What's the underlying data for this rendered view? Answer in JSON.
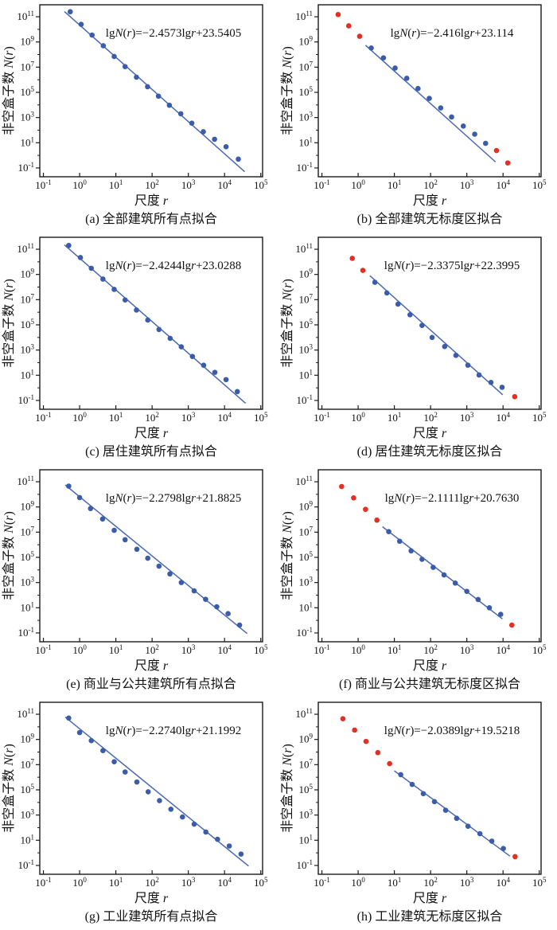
{
  "figure": {
    "description": "Eight log-log box-counting fractal fit plots, 4 rows x 2 columns",
    "background": "#ffffff"
  },
  "colors": {
    "blue_point": "#3b5ca9",
    "red_point": "#e23022",
    "fit_line": "#4a68b4",
    "axis": "#1a1a1a",
    "text": "#111111"
  },
  "axes_config": {
    "x_label": "尺度 r",
    "y_label": "非空盒子数 N(r)",
    "x_tick_exponents": [
      -1,
      0,
      1,
      2,
      3,
      4,
      5
    ],
    "y_tick_exponents_major": [
      -1,
      1,
      3,
      5,
      7,
      9,
      11
    ],
    "y_tick_exponents_minor": [
      0,
      2,
      4,
      6,
      8,
      10
    ],
    "xscale": "log",
    "yscale": "log",
    "xlim": [
      0.1,
      100000
    ],
    "ylim": [
      0.1,
      1000000000000
    ]
  },
  "chart_data": [
    {
      "id": "a",
      "type": "scatter",
      "caption": "(a) 全部建筑所有点拟合",
      "equation": "lgN(r)=−2.4573lgr+23.5405",
      "xlabel": "尺度 r",
      "ylabel": "非空盒子数 N(r)",
      "xscale": "log",
      "yscale": "log",
      "xlim": [
        0.1,
        100000
      ],
      "ylim": [
        0.1,
        1000000000000.0
      ],
      "points": [
        [
          0.55,
          250000000000.0,
          "blue"
        ],
        [
          1.1,
          25000000000.0,
          "blue"
        ],
        [
          2.2,
          3500000000.0,
          "blue"
        ],
        [
          4.5,
          500000000.0,
          "blue"
        ],
        [
          9,
          70000000.0,
          "blue"
        ],
        [
          18,
          11000000.0,
          "blue"
        ],
        [
          37,
          1600000.0,
          "blue"
        ],
        [
          75,
          280000.0,
          "blue"
        ],
        [
          150,
          50000.0,
          "blue"
        ],
        [
          300,
          9500.0,
          "blue"
        ],
        [
          620,
          2000.0,
          "blue"
        ],
        [
          1250,
          360.0,
          "blue"
        ],
        [
          2600,
          75,
          "blue"
        ],
        [
          5300,
          19,
          "blue"
        ],
        [
          11000,
          4.8,
          "blue"
        ],
        [
          24000,
          0.5,
          "blue"
        ]
      ],
      "fit_line": [
        0.38,
        260000000000.0,
        36000,
        0.05
      ]
    },
    {
      "id": "b",
      "type": "scatter",
      "caption": "(b) 全部建筑无标度区拟合",
      "equation": "lgN(r)=−2.416lgr+23.114",
      "xlabel": "尺度 r",
      "ylabel": "非空盒子数 N(r)",
      "xscale": "log",
      "yscale": "log",
      "xlim": [
        0.1,
        100000
      ],
      "ylim": [
        0.1,
        1000000000000.0
      ],
      "points": [
        [
          0.28,
          150000000000.0,
          "red"
        ],
        [
          0.55,
          19000000000.0,
          "red"
        ],
        [
          1.1,
          2800000000.0,
          "red"
        ],
        [
          2.3,
          330000000.0,
          "blue"
        ],
        [
          5,
          55000000.0,
          "blue"
        ],
        [
          10.5,
          8500000.0,
          "blue"
        ],
        [
          22,
          1300000.0,
          "blue"
        ],
        [
          45,
          200000.0,
          "blue"
        ],
        [
          92,
          33000.0,
          "blue"
        ],
        [
          190,
          5800.0,
          "blue"
        ],
        [
          380,
          1100.0,
          "blue"
        ],
        [
          800,
          210.0,
          "blue"
        ],
        [
          1650,
          48,
          "blue"
        ],
        [
          3300,
          9,
          "blue"
        ],
        [
          6600,
          2.4,
          "red"
        ],
        [
          13500,
          0.25,
          "red"
        ]
      ],
      "fit_line": [
        1.6,
        550000000.0,
        6200,
        0.3
      ]
    },
    {
      "id": "c",
      "type": "scatter",
      "caption": "(c) 居住建筑所有点拟合",
      "equation": "lgN(r)=−2.4244lgr+23.0288",
      "xlabel": "尺度 r",
      "ylabel": "非空盒子数 N(r)",
      "xscale": "log",
      "yscale": "log",
      "xlim": [
        0.1,
        100000
      ],
      "ylim": [
        0.1,
        1000000000000.0
      ],
      "points": [
        [
          0.5,
          200000000000.0,
          "blue"
        ],
        [
          1.05,
          22000000000.0,
          "blue"
        ],
        [
          2.1,
          3100000000.0,
          "blue"
        ],
        [
          4.4,
          430000000.0,
          "blue"
        ],
        [
          9,
          65000000.0,
          "blue"
        ],
        [
          18,
          9500000.0,
          "blue"
        ],
        [
          37,
          1500000.0,
          "blue"
        ],
        [
          76,
          240000.0,
          "blue"
        ],
        [
          155,
          43000.0,
          "blue"
        ],
        [
          315,
          8500.0,
          "blue"
        ],
        [
          640,
          1800.0,
          "blue"
        ],
        [
          1300,
          310.0,
          "blue"
        ],
        [
          2650,
          62,
          "blue"
        ],
        [
          5400,
          17,
          "blue"
        ],
        [
          11000,
          4.5,
          "blue"
        ],
        [
          22500,
          0.5,
          "blue"
        ]
      ],
      "fit_line": [
        0.38,
        220000000000.0,
        38000,
        0.06
      ]
    },
    {
      "id": "d",
      "type": "scatter",
      "caption": "(d) 居住建筑无标度区拟合",
      "equation": "lgN(r)=−2.3375lgr+22.3995",
      "xlabel": "尺度 r",
      "ylabel": "非空盒子数 N(r)",
      "xscale": "log",
      "yscale": "log",
      "xlim": [
        0.1,
        100000
      ],
      "ylim": [
        0.1,
        1000000000000.0
      ],
      "points": [
        [
          0.69,
          19000000000.0,
          "red"
        ],
        [
          1.35,
          2100000000.0,
          "red"
        ],
        [
          2.9,
          240000000.0,
          "blue"
        ],
        [
          6.2,
          34000000.0,
          "blue"
        ],
        [
          12.6,
          4400000.0,
          "blue"
        ],
        [
          27,
          630000.0,
          "blue"
        ],
        [
          58,
          90000.0,
          "blue"
        ],
        [
          110,
          10000.0,
          "blue"
        ],
        [
          245,
          1900.0,
          "blue"
        ],
        [
          500,
          380.0,
          "blue"
        ],
        [
          1070,
          63,
          "blue"
        ],
        [
          2180,
          10.5,
          "blue"
        ],
        [
          4640,
          2.7,
          "blue"
        ],
        [
          9400,
          1.1,
          "blue"
        ],
        [
          21000,
          0.2,
          "red"
        ]
      ],
      "fit_line": [
        2.1,
        800000000.0,
        9800,
        0.28
      ]
    },
    {
      "id": "e",
      "type": "scatter",
      "caption": "(e) 商业与公共建筑所有点拟合",
      "equation": "lgN(r)=−2.2798lgr+21.8825",
      "xlabel": "尺度 r",
      "ylabel": "非空盒子数 N(r)",
      "xscale": "log",
      "yscale": "log",
      "xlim": [
        0.1,
        100000
      ],
      "ylim": [
        0.1,
        1000000000000.0
      ],
      "points": [
        [
          0.5,
          45000000000.0,
          "blue"
        ],
        [
          1,
          5500000000.0,
          "blue"
        ],
        [
          2,
          750000000.0,
          "blue"
        ],
        [
          4.3,
          110000000.0,
          "blue"
        ],
        [
          9,
          14000000.0,
          "blue"
        ],
        [
          18,
          2500000.0,
          "blue"
        ],
        [
          38,
          440000.0,
          "blue"
        ],
        [
          76,
          85000.0,
          "blue"
        ],
        [
          155,
          20000.0,
          "blue"
        ],
        [
          310,
          4800.0,
          "blue"
        ],
        [
          640,
          1000.0,
          "blue"
        ],
        [
          1450,
          220.0,
          "blue"
        ],
        [
          3000,
          47,
          "blue"
        ],
        [
          6100,
          12,
          "blue"
        ],
        [
          12500,
          3.4,
          "blue"
        ],
        [
          26000,
          0.42,
          "blue"
        ]
      ],
      "fit_line": [
        0.4,
        55000000000.0,
        42000,
        0.09
      ]
    },
    {
      "id": "f",
      "type": "scatter",
      "caption": "(f) 商业与公共建筑无标度区拟合",
      "equation": "lgN(r)=−2.1111lgr+20.7630",
      "xlabel": "尺度 r",
      "ylabel": "非空盒子数 N(r)",
      "xscale": "log",
      "yscale": "log",
      "xlim": [
        0.1,
        100000
      ],
      "ylim": [
        0.1,
        1000000000000.0
      ],
      "points": [
        [
          0.35,
          42000000000.0,
          "red"
        ],
        [
          0.75,
          5200000000.0,
          "red"
        ],
        [
          1.6,
          650000000.0,
          "red"
        ],
        [
          3.3,
          90000000.0,
          "red"
        ],
        [
          7,
          11000000.0,
          "blue"
        ],
        [
          14,
          1900000.0,
          "blue"
        ],
        [
          29,
          330000.0,
          "blue"
        ],
        [
          58,
          70000.0,
          "blue"
        ],
        [
          118,
          16000.0,
          "blue"
        ],
        [
          235,
          4000.0,
          "blue"
        ],
        [
          480,
          900.0,
          "blue"
        ],
        [
          1000,
          200.0,
          "blue"
        ],
        [
          2050,
          45,
          "blue"
        ],
        [
          4200,
          10,
          "blue"
        ],
        [
          8600,
          3,
          "blue"
        ],
        [
          17500,
          0.42,
          "red"
        ]
      ],
      "fit_line": [
        4.7,
        27000000.0,
        9600,
        1.3
      ]
    },
    {
      "id": "g",
      "type": "scatter",
      "caption": "(g) 工业建筑所有点拟合",
      "equation": "lgN(r)=−2.2740lgr+21.1992",
      "xlabel": "尺度 r",
      "ylabel": "非空盒子数 N(r)",
      "xscale": "log",
      "yscale": "log",
      "xlim": [
        0.1,
        100000
      ],
      "ylim": [
        0.1,
        1000000000000.0
      ],
      "points": [
        [
          0.5,
          50000000000.0,
          "blue"
        ],
        [
          1,
          3500000000.0,
          "blue"
        ],
        [
          2.1,
          800000000.0,
          "blue"
        ],
        [
          4.4,
          130000000.0,
          "blue"
        ],
        [
          9,
          17000000.0,
          "blue"
        ],
        [
          18,
          2600000.0,
          "blue"
        ],
        [
          38,
          420000.0,
          "blue"
        ],
        [
          78,
          70000.0,
          "blue"
        ],
        [
          160,
          14000.0,
          "blue"
        ],
        [
          330,
          2900.0,
          "blue"
        ],
        [
          690,
          700.0,
          "blue"
        ],
        [
          1450,
          190.0,
          "blue"
        ],
        [
          3050,
          45,
          "blue"
        ],
        [
          6400,
          12,
          "blue"
        ],
        [
          13500,
          3.5,
          "blue"
        ],
        [
          28500,
          0.8,
          "blue"
        ]
      ],
      "fit_line": [
        0.4,
        60000000000.0,
        46000,
        0.09
      ]
    },
    {
      "id": "h",
      "type": "scatter",
      "caption": "(h) 工业建筑无标度区拟合",
      "equation": "lgN(r)=−2.0389lgr+19.5218",
      "xlabel": "尺度 r",
      "ylabel": "非空盒子数 N(r)",
      "xscale": "log",
      "yscale": "log",
      "xlim": [
        0.1,
        100000
      ],
      "ylim": [
        0.1,
        1000000000000.0
      ],
      "points": [
        [
          0.38,
          44000000000.0,
          "red"
        ],
        [
          0.8,
          5500000000.0,
          "red"
        ],
        [
          1.65,
          700000000.0,
          "red"
        ],
        [
          3.5,
          90000000.0,
          "red"
        ],
        [
          7.4,
          12000000.0,
          "red"
        ],
        [
          15,
          1600000.0,
          "blue"
        ],
        [
          31,
          270000.0,
          "blue"
        ],
        [
          63,
          50000.0,
          "blue"
        ],
        [
          128,
          11500.0,
          "blue"
        ],
        [
          260,
          2400.0,
          "blue"
        ],
        [
          525,
          550.0,
          "blue"
        ],
        [
          1080,
          130.0,
          "blue"
        ],
        [
          2300,
          33,
          "blue"
        ],
        [
          4900,
          8.5,
          "blue"
        ],
        [
          10200,
          2.2,
          "blue"
        ],
        [
          21500,
          0.5,
          "red"
        ]
      ],
      "fit_line": [
        10,
        3200000.0,
        15500,
        0.55
      ]
    }
  ]
}
